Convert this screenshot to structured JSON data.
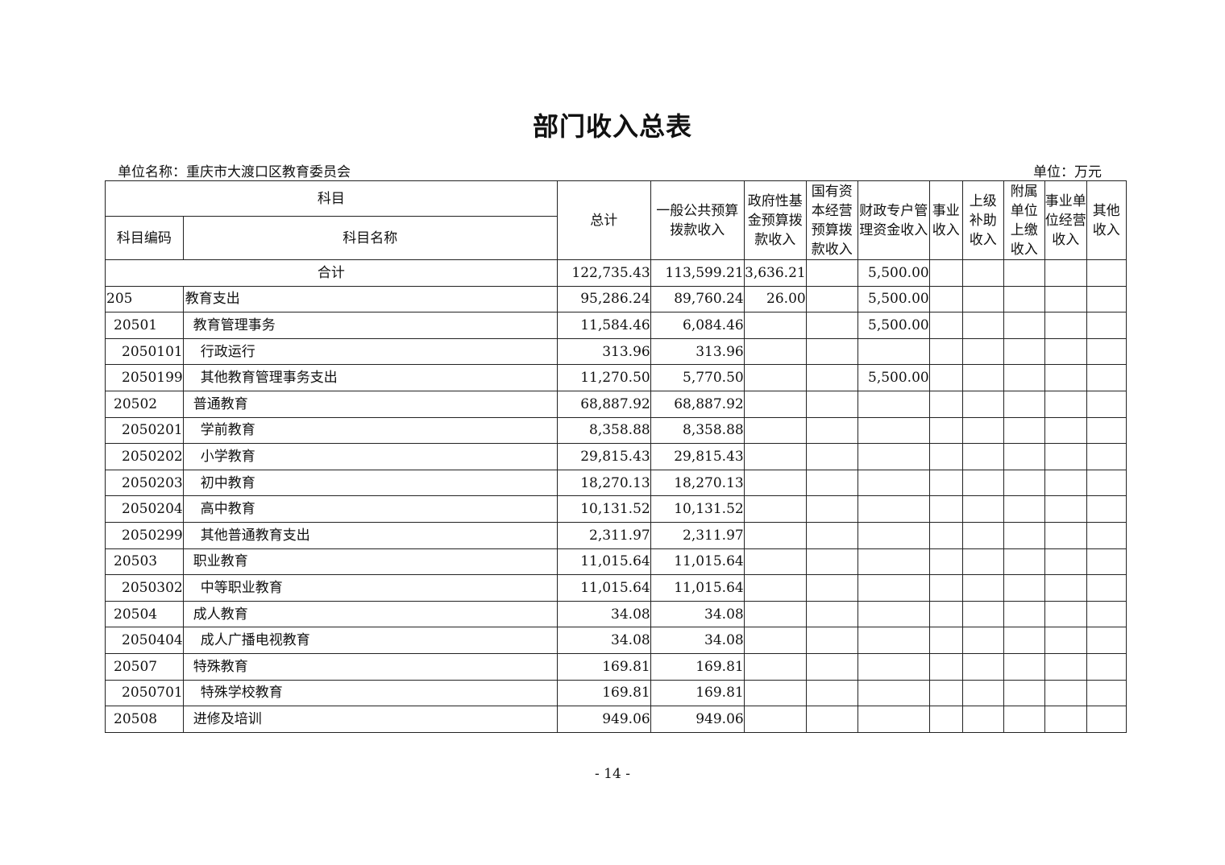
{
  "title": "部门收入总表",
  "unit_name": "单位名称：重庆市大渡口区教育委员会",
  "unit": "单位：万元",
  "headers": {
    "subject": "科目",
    "code": "科目编码",
    "name": "科目名称",
    "columns": [
      "总计",
      "一般公共预算拨款收入",
      "政府性基金预算拨款收入",
      "国有资本经营预算拨款收入",
      "财政专户管理资金收入",
      "事业收入",
      "上级补助收入",
      "附属单位上缴收入",
      "事业单位经营收入",
      "其他收入"
    ]
  },
  "total_row": {
    "label": "合计",
    "values": [
      "122,735.43",
      "113,599.21",
      "3,636.21",
      "",
      "5,500.00",
      "",
      "",
      "",
      "",
      ""
    ]
  },
  "rows": [
    {
      "level": 0,
      "code": "205",
      "name": "教育支出",
      "values": [
        "95,286.24",
        "89,760.24",
        "26.00",
        "",
        "5,500.00",
        "",
        "",
        "",
        "",
        ""
      ]
    },
    {
      "level": 1,
      "code": "20501",
      "name": "教育管理事务",
      "values": [
        "11,584.46",
        "6,084.46",
        "",
        "",
        "5,500.00",
        "",
        "",
        "",
        "",
        ""
      ]
    },
    {
      "level": 2,
      "code": "2050101",
      "name": "行政运行",
      "values": [
        "313.96",
        "313.96",
        "",
        "",
        "",
        "",
        "",
        "",
        "",
        ""
      ]
    },
    {
      "level": 2,
      "code": "2050199",
      "name": "其他教育管理事务支出",
      "values": [
        "11,270.50",
        "5,770.50",
        "",
        "",
        "5,500.00",
        "",
        "",
        "",
        "",
        ""
      ]
    },
    {
      "level": 1,
      "code": "20502",
      "name": "普通教育",
      "values": [
        "68,887.92",
        "68,887.92",
        "",
        "",
        "",
        "",
        "",
        "",
        "",
        ""
      ]
    },
    {
      "level": 2,
      "code": "2050201",
      "name": "学前教育",
      "values": [
        "8,358.88",
        "8,358.88",
        "",
        "",
        "",
        "",
        "",
        "",
        "",
        ""
      ]
    },
    {
      "level": 2,
      "code": "2050202",
      "name": "小学教育",
      "values": [
        "29,815.43",
        "29,815.43",
        "",
        "",
        "",
        "",
        "",
        "",
        "",
        ""
      ]
    },
    {
      "level": 2,
      "code": "2050203",
      "name": "初中教育",
      "values": [
        "18,270.13",
        "18,270.13",
        "",
        "",
        "",
        "",
        "",
        "",
        "",
        ""
      ]
    },
    {
      "level": 2,
      "code": "2050204",
      "name": "高中教育",
      "values": [
        "10,131.52",
        "10,131.52",
        "",
        "",
        "",
        "",
        "",
        "",
        "",
        ""
      ]
    },
    {
      "level": 2,
      "code": "2050299",
      "name": "其他普通教育支出",
      "values": [
        "2,311.97",
        "2,311.97",
        "",
        "",
        "",
        "",
        "",
        "",
        "",
        ""
      ]
    },
    {
      "level": 1,
      "code": "20503",
      "name": "职业教育",
      "values": [
        "11,015.64",
        "11,015.64",
        "",
        "",
        "",
        "",
        "",
        "",
        "",
        ""
      ]
    },
    {
      "level": 2,
      "code": "2050302",
      "name": "中等职业教育",
      "values": [
        "11,015.64",
        "11,015.64",
        "",
        "",
        "",
        "",
        "",
        "",
        "",
        ""
      ]
    },
    {
      "level": 1,
      "code": "20504",
      "name": "成人教育",
      "values": [
        "34.08",
        "34.08",
        "",
        "",
        "",
        "",
        "",
        "",
        "",
        ""
      ]
    },
    {
      "level": 2,
      "code": "2050404",
      "name": "成人广播电视教育",
      "values": [
        "34.08",
        "34.08",
        "",
        "",
        "",
        "",
        "",
        "",
        "",
        ""
      ]
    },
    {
      "level": 1,
      "code": "20507",
      "name": "特殊教育",
      "values": [
        "169.81",
        "169.81",
        "",
        "",
        "",
        "",
        "",
        "",
        "",
        ""
      ]
    },
    {
      "level": 2,
      "code": "2050701",
      "name": "特殊学校教育",
      "values": [
        "169.81",
        "169.81",
        "",
        "",
        "",
        "",
        "",
        "",
        "",
        ""
      ]
    },
    {
      "level": 1,
      "code": "20508",
      "name": "进修及培训",
      "values": [
        "949.06",
        "949.06",
        "",
        "",
        "",
        "",
        "",
        "",
        "",
        ""
      ]
    }
  ],
  "page_number": "- 14 -"
}
